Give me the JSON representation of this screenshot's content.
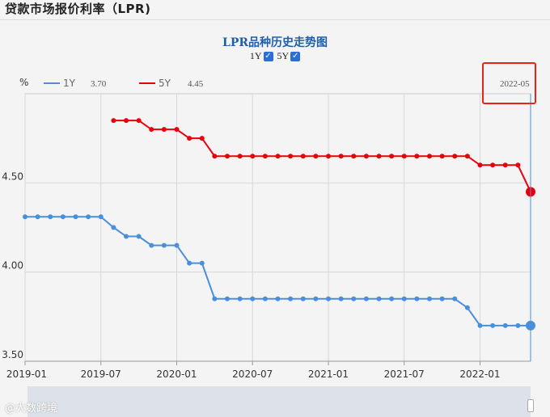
{
  "page": {
    "title": "贷款市场报价利率（LPR)",
    "watermark": "@大数跨境"
  },
  "toggles": [
    {
      "label": "1Y",
      "checked": true
    },
    {
      "label": "5Y",
      "checked": true
    }
  ],
  "colors": {
    "series_1y": "#4a8fdc",
    "series_5y": "#e8000b",
    "highlight": "#e8231a"
  },
  "chart_data": {
    "type": "line",
    "title": "LPR品种历史走势图",
    "ylabel": "%",
    "ylim": [
      3.5,
      5.0
    ],
    "xlim": [
      "2019-01",
      "2022-05"
    ],
    "grid": true,
    "legend_placement": "top-left",
    "y_ticks": [
      "3.50",
      "4.00",
      "4.50"
    ],
    "x_ticks": [
      "2019-01",
      "2019-07",
      "2020-01",
      "2020-07",
      "2021-01",
      "2021-07",
      "2022-01"
    ],
    "cursor": {
      "x": "2022-05",
      "label": "2022-05"
    },
    "series": [
      {
        "name": "1Y",
        "current": "3.70",
        "points": [
          [
            "2019-01",
            4.31
          ],
          [
            "2019-02",
            4.31
          ],
          [
            "2019-03",
            4.31
          ],
          [
            "2019-04",
            4.31
          ],
          [
            "2019-05",
            4.31
          ],
          [
            "2019-06",
            4.31
          ],
          [
            "2019-07",
            4.31
          ],
          [
            "2019-08",
            4.25
          ],
          [
            "2019-09",
            4.2
          ],
          [
            "2019-10",
            4.2
          ],
          [
            "2019-11",
            4.15
          ],
          [
            "2019-12",
            4.15
          ],
          [
            "2020-01",
            4.15
          ],
          [
            "2020-02",
            4.05
          ],
          [
            "2020-03",
            4.05
          ],
          [
            "2020-04",
            3.85
          ],
          [
            "2020-05",
            3.85
          ],
          [
            "2020-06",
            3.85
          ],
          [
            "2020-07",
            3.85
          ],
          [
            "2020-08",
            3.85
          ],
          [
            "2020-09",
            3.85
          ],
          [
            "2020-10",
            3.85
          ],
          [
            "2020-11",
            3.85
          ],
          [
            "2020-12",
            3.85
          ],
          [
            "2021-01",
            3.85
          ],
          [
            "2021-02",
            3.85
          ],
          [
            "2021-03",
            3.85
          ],
          [
            "2021-04",
            3.85
          ],
          [
            "2021-05",
            3.85
          ],
          [
            "2021-06",
            3.85
          ],
          [
            "2021-07",
            3.85
          ],
          [
            "2021-08",
            3.85
          ],
          [
            "2021-09",
            3.85
          ],
          [
            "2021-10",
            3.85
          ],
          [
            "2021-11",
            3.85
          ],
          [
            "2021-12",
            3.8
          ],
          [
            "2022-01",
            3.7
          ],
          [
            "2022-02",
            3.7
          ],
          [
            "2022-03",
            3.7
          ],
          [
            "2022-04",
            3.7
          ],
          [
            "2022-05",
            3.7
          ]
        ]
      },
      {
        "name": "5Y",
        "current": "4.45",
        "points": [
          [
            "2019-08",
            4.85
          ],
          [
            "2019-09",
            4.85
          ],
          [
            "2019-10",
            4.85
          ],
          [
            "2019-11",
            4.8
          ],
          [
            "2019-12",
            4.8
          ],
          [
            "2020-01",
            4.8
          ],
          [
            "2020-02",
            4.75
          ],
          [
            "2020-03",
            4.75
          ],
          [
            "2020-04",
            4.65
          ],
          [
            "2020-05",
            4.65
          ],
          [
            "2020-06",
            4.65
          ],
          [
            "2020-07",
            4.65
          ],
          [
            "2020-08",
            4.65
          ],
          [
            "2020-09",
            4.65
          ],
          [
            "2020-10",
            4.65
          ],
          [
            "2020-11",
            4.65
          ],
          [
            "2020-12",
            4.65
          ],
          [
            "2021-01",
            4.65
          ],
          [
            "2021-02",
            4.65
          ],
          [
            "2021-03",
            4.65
          ],
          [
            "2021-04",
            4.65
          ],
          [
            "2021-05",
            4.65
          ],
          [
            "2021-06",
            4.65
          ],
          [
            "2021-07",
            4.65
          ],
          [
            "2021-08",
            4.65
          ],
          [
            "2021-09",
            4.65
          ],
          [
            "2021-10",
            4.65
          ],
          [
            "2021-11",
            4.65
          ],
          [
            "2021-12",
            4.65
          ],
          [
            "2022-01",
            4.6
          ],
          [
            "2022-02",
            4.6
          ],
          [
            "2022-03",
            4.6
          ],
          [
            "2022-04",
            4.6
          ],
          [
            "2022-05",
            4.45
          ]
        ]
      }
    ]
  }
}
